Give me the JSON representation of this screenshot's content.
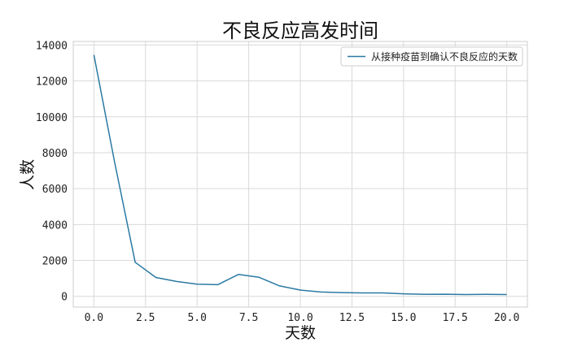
{
  "chart_data": {
    "type": "line",
    "title": "不良反应高发时间",
    "xlabel": "天数",
    "ylabel": "人数",
    "xlim": [
      -1,
      21
    ],
    "ylim": [
      -600,
      14200
    ],
    "xticks": [
      0,
      2.5,
      5,
      7.5,
      10,
      12.5,
      15,
      17.5,
      20
    ],
    "xtick_labels": [
      "0.0",
      "2.5",
      "5.0",
      "7.5",
      "10.0",
      "12.5",
      "15.0",
      "17.5",
      "20.0"
    ],
    "yticks": [
      0,
      2000,
      4000,
      6000,
      8000,
      10000,
      12000,
      14000
    ],
    "ytick_labels": [
      "0",
      "2000",
      "4000",
      "6000",
      "8000",
      "10000",
      "12000",
      "14000"
    ],
    "grid": true,
    "legend_position": "top-right",
    "colors": {
      "line": "#2a7aa3",
      "grid": "#d9d9d9",
      "frame": "#cccccc"
    },
    "series": [
      {
        "name": "从接种疫苗到确认不良反应的天数",
        "x": [
          0,
          1,
          2,
          3,
          4,
          5,
          6,
          7,
          8,
          9,
          10,
          11,
          12,
          13,
          14,
          15,
          16,
          17,
          18,
          19,
          20
        ],
        "y": [
          13450,
          7500,
          1900,
          1050,
          830,
          680,
          650,
          1220,
          1060,
          580,
          350,
          240,
          210,
          190,
          190,
          140,
          110,
          120,
          100,
          110,
          100
        ]
      }
    ]
  }
}
